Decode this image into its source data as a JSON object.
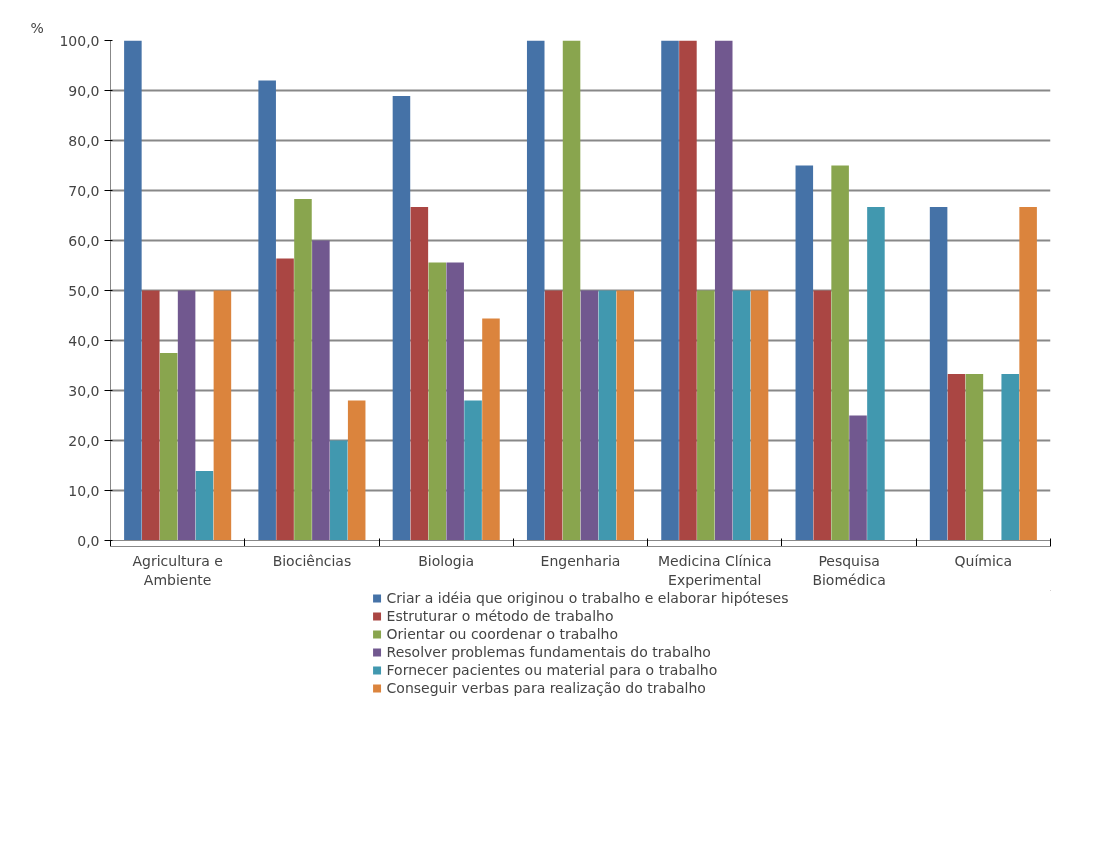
{
  "chart_data": {
    "type": "bar",
    "ylabel": "%",
    "categories": [
      "Agricultura e Ambiente",
      "Biociências",
      "Biologia",
      "Engenharia",
      "Medicina Clínica Experimental",
      "Pesquisa Biomédica",
      "Química"
    ],
    "series": [
      {
        "name": "Criar a idéia que originou o trabalho e elaborar hipóteses",
        "color": "#4572a7",
        "values": [
          100,
          92,
          88.9,
          100,
          100,
          75,
          66.7
        ]
      },
      {
        "name": "Estruturar o método de trabalho",
        "color": "#aa4643",
        "values": [
          50,
          56.4,
          66.7,
          50,
          100,
          50,
          33.3
        ]
      },
      {
        "name": "Orientar ou coordenar o trabalho",
        "color": "#89a54e",
        "values": [
          37.5,
          68.3,
          55.6,
          100,
          50,
          75,
          33.3
        ]
      },
      {
        "name": "Resolver problemas fundamentais do trabalho",
        "color": "#71588f",
        "values": [
          50,
          60,
          55.6,
          50,
          100,
          25,
          null
        ]
      },
      {
        "name": "Fornecer pacientes ou material para o trabalho",
        "color": "#4198af",
        "values": [
          13.9,
          20,
          28,
          50,
          50,
          66.7,
          33.3
        ]
      },
      {
        "name": "Conseguir verbas para realização do trabalho",
        "color": "#db843d",
        "values": [
          50,
          28,
          44.4,
          50,
          50,
          null,
          66.7
        ]
      }
    ],
    "ylim": [
      0,
      100
    ],
    "yticks": [
      {
        "value": 0,
        "label": "0,0"
      },
      {
        "value": 10,
        "label": "10,0"
      },
      {
        "value": 20,
        "label": "20,0"
      },
      {
        "value": 30,
        "label": "30,0"
      },
      {
        "value": 40,
        "label": "40,0"
      },
      {
        "value": 50,
        "label": "50,0"
      },
      {
        "value": 60,
        "label": "60,0"
      },
      {
        "value": 70,
        "label": "70,0"
      },
      {
        "value": 80,
        "label": "80,0"
      },
      {
        "value": 90,
        "label": "90,0"
      },
      {
        "value": 100,
        "label": "100,0"
      }
    ],
    "grid": "y",
    "legend": "bottom"
  }
}
